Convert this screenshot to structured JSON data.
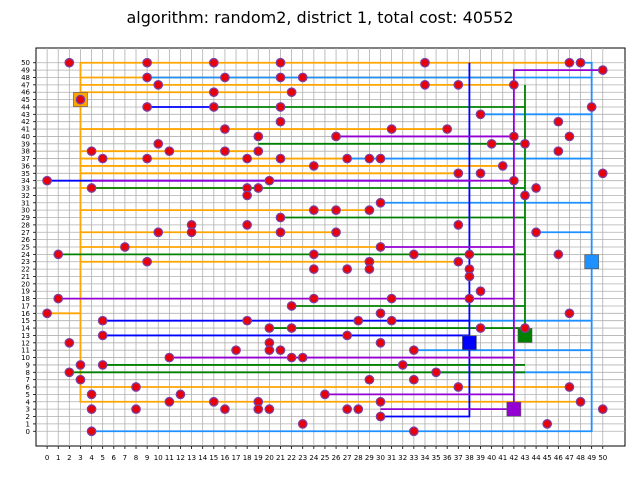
{
  "chart_data": {
    "type": "scatter",
    "title": "algorithm: random2, district 1, total cost: 40552",
    "xlabel": "",
    "ylabel": "",
    "xlim": [
      -1,
      52
    ],
    "ylim": [
      -2,
      52
    ],
    "grid": true,
    "x_ticks": [
      0,
      1,
      2,
      3,
      4,
      5,
      6,
      7,
      8,
      9,
      10,
      11,
      12,
      13,
      14,
      15,
      16,
      17,
      18,
      19,
      20,
      21,
      22,
      23,
      24,
      25,
      26,
      27,
      28,
      29,
      30,
      31,
      32,
      33,
      34,
      35,
      36,
      37,
      38,
      39,
      40,
      41,
      42,
      43,
      44,
      45,
      46,
      47,
      48,
      49,
      50
    ],
    "y_ticks": [
      0,
      1,
      2,
      3,
      4,
      5,
      6,
      7,
      8,
      9,
      10,
      11,
      12,
      13,
      14,
      15,
      16,
      17,
      18,
      19,
      20,
      21,
      22,
      23,
      24,
      25,
      26,
      27,
      28,
      29,
      30,
      31,
      32,
      33,
      34,
      35,
      36,
      37,
      38,
      39,
      40,
      41,
      42,
      43,
      44,
      45,
      46,
      47,
      48,
      49,
      50
    ],
    "colors": {
      "house_fill": "#e8000b",
      "house_edge": "#7b3fa0",
      "grid": "#b0b0b0"
    },
    "batteries": [
      {
        "x": 3,
        "y": 45,
        "color": "#ffa500"
      },
      {
        "x": 49,
        "y": 23,
        "color": "#1e90ff"
      },
      {
        "x": 43,
        "y": 13,
        "color": "#008000"
      },
      {
        "x": 38,
        "y": 12,
        "color": "#0000ff"
      },
      {
        "x": 42,
        "y": 3,
        "color": "#9400d3"
      }
    ],
    "houses": [
      [
        2,
        50
      ],
      [
        9,
        50
      ],
      [
        15,
        50
      ],
      [
        21,
        50
      ],
      [
        34,
        50
      ],
      [
        47,
        50
      ],
      [
        48,
        50
      ],
      [
        50,
        49
      ],
      [
        9,
        48
      ],
      [
        16,
        48
      ],
      [
        21,
        48
      ],
      [
        23,
        48
      ],
      [
        10,
        47
      ],
      [
        34,
        47
      ],
      [
        37,
        47
      ],
      [
        42,
        47
      ],
      [
        15,
        46
      ],
      [
        22,
        46
      ],
      [
        3,
        45
      ],
      [
        9,
        44
      ],
      [
        15,
        44
      ],
      [
        21,
        44
      ],
      [
        49,
        44
      ],
      [
        39,
        43
      ],
      [
        21,
        42
      ],
      [
        46,
        42
      ],
      [
        16,
        41
      ],
      [
        31,
        41
      ],
      [
        36,
        41
      ],
      [
        19,
        40
      ],
      [
        26,
        40
      ],
      [
        42,
        40
      ],
      [
        47,
        40
      ],
      [
        10,
        39
      ],
      [
        40,
        39
      ],
      [
        43,
        39
      ],
      [
        4,
        38
      ],
      [
        11,
        38
      ],
      [
        16,
        38
      ],
      [
        19,
        38
      ],
      [
        46,
        38
      ],
      [
        5,
        37
      ],
      [
        9,
        37
      ],
      [
        18,
        37
      ],
      [
        21,
        37
      ],
      [
        27,
        37
      ],
      [
        29,
        37
      ],
      [
        30,
        37
      ],
      [
        24,
        36
      ],
      [
        41,
        36
      ],
      [
        37,
        35
      ],
      [
        39,
        35
      ],
      [
        50,
        35
      ],
      [
        0,
        34
      ],
      [
        20,
        34
      ],
      [
        42,
        34
      ],
      [
        4,
        33
      ],
      [
        18,
        33
      ],
      [
        19,
        33
      ],
      [
        44,
        33
      ],
      [
        18,
        32
      ],
      [
        43,
        32
      ],
      [
        30,
        31
      ],
      [
        24,
        30
      ],
      [
        26,
        30
      ],
      [
        29,
        30
      ],
      [
        21,
        29
      ],
      [
        13,
        28
      ],
      [
        18,
        28
      ],
      [
        37,
        28
      ],
      [
        10,
        27
      ],
      [
        13,
        27
      ],
      [
        21,
        27
      ],
      [
        26,
        27
      ],
      [
        44,
        27
      ],
      [
        7,
        25
      ],
      [
        30,
        25
      ],
      [
        1,
        24
      ],
      [
        24,
        24
      ],
      [
        33,
        24
      ],
      [
        38,
        24
      ],
      [
        46,
        24
      ],
      [
        9,
        23
      ],
      [
        29,
        23
      ],
      [
        37,
        23
      ],
      [
        24,
        22
      ],
      [
        27,
        22
      ],
      [
        29,
        22
      ],
      [
        38,
        22
      ],
      [
        38,
        21
      ],
      [
        39,
        19
      ],
      [
        1,
        18
      ],
      [
        24,
        18
      ],
      [
        31,
        18
      ],
      [
        38,
        18
      ],
      [
        22,
        17
      ],
      [
        0,
        16
      ],
      [
        30,
        16
      ],
      [
        47,
        16
      ],
      [
        5,
        15
      ],
      [
        18,
        15
      ],
      [
        28,
        15
      ],
      [
        31,
        15
      ],
      [
        20,
        14
      ],
      [
        22,
        14
      ],
      [
        39,
        14
      ],
      [
        43,
        14
      ],
      [
        5,
        13
      ],
      [
        27,
        13
      ],
      [
        2,
        12
      ],
      [
        20,
        12
      ],
      [
        30,
        12
      ],
      [
        17,
        11
      ],
      [
        20,
        11
      ],
      [
        21,
        11
      ],
      [
        33,
        11
      ],
      [
        11,
        10
      ],
      [
        22,
        10
      ],
      [
        23,
        10
      ],
      [
        3,
        9
      ],
      [
        5,
        9
      ],
      [
        32,
        9
      ],
      [
        2,
        8
      ],
      [
        35,
        8
      ],
      [
        3,
        7
      ],
      [
        29,
        7
      ],
      [
        33,
        7
      ],
      [
        8,
        6
      ],
      [
        37,
        6
      ],
      [
        47,
        6
      ],
      [
        4,
        5
      ],
      [
        12,
        5
      ],
      [
        25,
        5
      ],
      [
        11,
        4
      ],
      [
        15,
        4
      ],
      [
        19,
        4
      ],
      [
        30,
        4
      ],
      [
        48,
        4
      ],
      [
        4,
        3
      ],
      [
        8,
        3
      ],
      [
        16,
        3
      ],
      [
        19,
        3
      ],
      [
        20,
        3
      ],
      [
        27,
        3
      ],
      [
        28,
        3
      ],
      [
        50,
        3
      ],
      [
        30,
        2
      ],
      [
        23,
        1
      ],
      [
        45,
        1
      ],
      [
        4,
        0
      ],
      [
        33,
        0
      ]
    ],
    "cables": [
      {
        "color": "#ffa500",
        "points": [
          [
            3,
            45
          ],
          [
            3,
            50
          ],
          [
            47,
            50
          ]
        ]
      },
      {
        "color": "#ffa500",
        "points": [
          [
            3,
            48
          ],
          [
            42,
            48
          ]
        ]
      },
      {
        "color": "#ffa500",
        "points": [
          [
            3,
            47
          ],
          [
            42,
            47
          ]
        ]
      },
      {
        "color": "#ffa500",
        "points": [
          [
            3,
            46
          ],
          [
            22,
            46
          ]
        ]
      },
      {
        "color": "#ffa500",
        "points": [
          [
            3,
            45
          ],
          [
            3,
            4
          ],
          [
            48,
            4
          ]
        ]
      },
      {
        "color": "#ffa500",
        "points": [
          [
            3,
            41
          ],
          [
            36,
            41
          ]
        ]
      },
      {
        "color": "#ffa500",
        "points": [
          [
            3,
            38
          ],
          [
            19,
            38
          ]
        ]
      },
      {
        "color": "#ffa500",
        "points": [
          [
            3,
            37
          ],
          [
            30,
            37
          ]
        ]
      },
      {
        "color": "#ffa500",
        "points": [
          [
            3,
            36
          ],
          [
            41,
            36
          ]
        ]
      },
      {
        "color": "#ffa500",
        "points": [
          [
            3,
            35
          ],
          [
            37,
            35
          ]
        ]
      },
      {
        "color": "#ffa500",
        "points": [
          [
            3,
            33
          ],
          [
            19,
            33
          ]
        ]
      },
      {
        "color": "#ffa500",
        "points": [
          [
            3,
            30
          ],
          [
            29,
            30
          ]
        ]
      },
      {
        "color": "#ffa500",
        "points": [
          [
            3,
            27
          ],
          [
            26,
            27
          ]
        ]
      },
      {
        "color": "#ffa500",
        "points": [
          [
            3,
            25
          ],
          [
            30,
            25
          ]
        ]
      },
      {
        "color": "#ffa500",
        "points": [
          [
            3,
            23
          ],
          [
            37,
            23
          ]
        ]
      },
      {
        "color": "#ffa500",
        "points": [
          [
            0,
            16
          ],
          [
            3,
            16
          ]
        ]
      },
      {
        "color": "#ffa500",
        "points": [
          [
            3,
            6
          ],
          [
            47,
            6
          ]
        ]
      },
      {
        "color": "#1e90ff",
        "points": [
          [
            49,
            23
          ],
          [
            49,
            50
          ],
          [
            48,
            50
          ]
        ]
      },
      {
        "color": "#1e90ff",
        "points": [
          [
            9,
            48
          ],
          [
            49,
            48
          ]
        ]
      },
      {
        "color": "#1e90ff",
        "points": [
          [
            39,
            43
          ],
          [
            49,
            43
          ]
        ]
      },
      {
        "color": "#1e90ff",
        "points": [
          [
            27,
            37
          ],
          [
            49,
            37
          ]
        ]
      },
      {
        "color": "#1e90ff",
        "points": [
          [
            30,
            31
          ],
          [
            49,
            31
          ]
        ]
      },
      {
        "color": "#1e90ff",
        "points": [
          [
            44,
            27
          ],
          [
            49,
            27
          ]
        ]
      },
      {
        "color": "#1e90ff",
        "points": [
          [
            31,
            15
          ],
          [
            49,
            15
          ]
        ]
      },
      {
        "color": "#1e90ff",
        "points": [
          [
            33,
            11
          ],
          [
            49,
            11
          ]
        ]
      },
      {
        "color": "#1e90ff",
        "points": [
          [
            35,
            8
          ],
          [
            49,
            8
          ]
        ]
      },
      {
        "color": "#1e90ff",
        "points": [
          [
            4,
            0
          ],
          [
            49,
            0
          ],
          [
            49,
            23
          ]
        ]
      },
      {
        "color": "#008000",
        "points": [
          [
            43,
            13
          ],
          [
            43,
            47
          ]
        ]
      },
      {
        "color": "#008000",
        "points": [
          [
            15,
            44
          ],
          [
            43,
            44
          ]
        ]
      },
      {
        "color": "#008000",
        "points": [
          [
            19,
            39
          ],
          [
            43,
            39
          ]
        ]
      },
      {
        "color": "#008000",
        "points": [
          [
            4,
            33
          ],
          [
            43,
            33
          ]
        ]
      },
      {
        "color": "#008000",
        "points": [
          [
            21,
            29
          ],
          [
            43,
            29
          ]
        ]
      },
      {
        "color": "#008000",
        "points": [
          [
            1,
            24
          ],
          [
            43,
            24
          ]
        ]
      },
      {
        "color": "#008000",
        "points": [
          [
            22,
            17
          ],
          [
            43,
            17
          ]
        ]
      },
      {
        "color": "#008000",
        "points": [
          [
            20,
            14
          ],
          [
            43,
            14
          ]
        ]
      },
      {
        "color": "#008000",
        "points": [
          [
            5,
            9
          ],
          [
            43,
            9
          ]
        ]
      },
      {
        "color": "#008000",
        "points": [
          [
            2,
            8
          ],
          [
            43,
            8
          ]
        ]
      },
      {
        "color": "#0000ff",
        "points": [
          [
            38,
            12
          ],
          [
            38,
            50
          ]
        ]
      },
      {
        "color": "#0000ff",
        "points": [
          [
            9,
            44
          ],
          [
            15,
            44
          ]
        ]
      },
      {
        "color": "#0000ff",
        "points": [
          [
            0,
            34
          ],
          [
            38,
            34
          ]
        ]
      },
      {
        "color": "#0000ff",
        "points": [
          [
            5,
            15
          ],
          [
            38,
            15
          ]
        ]
      },
      {
        "color": "#0000ff",
        "points": [
          [
            5,
            13
          ],
          [
            38,
            13
          ]
        ]
      },
      {
        "color": "#0000ff",
        "points": [
          [
            30,
            2
          ],
          [
            38,
            2
          ],
          [
            38,
            12
          ]
        ]
      },
      {
        "color": "#9400d3",
        "points": [
          [
            42,
            3
          ],
          [
            42,
            49
          ],
          [
            50,
            49
          ]
        ]
      },
      {
        "color": "#9400d3",
        "points": [
          [
            4,
            34
          ],
          [
            42,
            34
          ]
        ]
      },
      {
        "color": "#9400d3",
        "points": [
          [
            26,
            40
          ],
          [
            42,
            40
          ]
        ]
      },
      {
        "color": "#9400d3",
        "points": [
          [
            30,
            25
          ],
          [
            42,
            25
          ]
        ]
      },
      {
        "color": "#9400d3",
        "points": [
          [
            1,
            18
          ],
          [
            42,
            18
          ]
        ]
      },
      {
        "color": "#9400d3",
        "points": [
          [
            11,
            10
          ],
          [
            42,
            10
          ]
        ]
      },
      {
        "color": "#9400d3",
        "points": [
          [
            25,
            5
          ],
          [
            42,
            5
          ]
        ]
      },
      {
        "color": "#9400d3",
        "points": [
          [
            30,
            3
          ],
          [
            42,
            3
          ]
        ]
      }
    ]
  }
}
